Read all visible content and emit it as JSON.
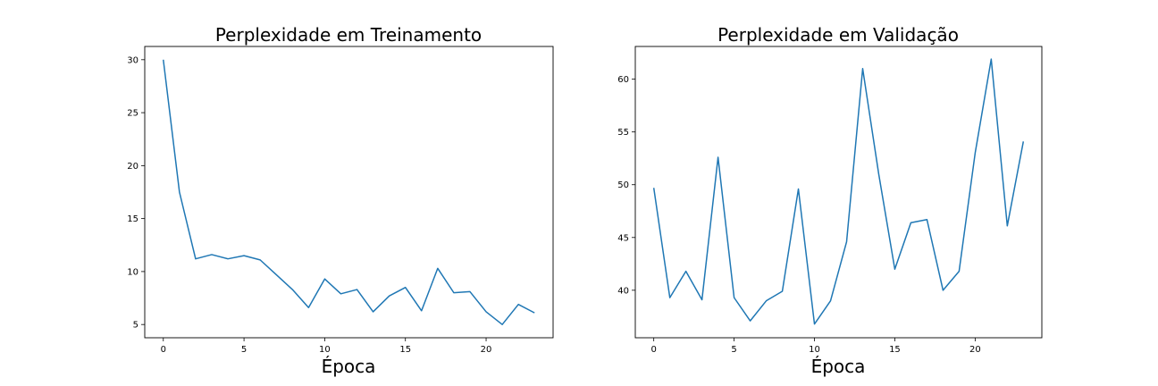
{
  "chart_data": [
    {
      "type": "line",
      "title": "Perplexidade em Treinamento",
      "xlabel": "Época",
      "ylabel": "",
      "xlim": [
        -1.15,
        24.15
      ],
      "ylim": [
        3.75,
        31.25
      ],
      "xticks": [
        0,
        5,
        10,
        15,
        20
      ],
      "yticks": [
        5,
        10,
        15,
        20,
        25,
        30
      ],
      "grid": false,
      "color": "#1f77b4",
      "series": [
        {
          "x": [
            0,
            1,
            2,
            3,
            4,
            5,
            6,
            7,
            8,
            9,
            10,
            11,
            12,
            13,
            14,
            15,
            16,
            17,
            18,
            19,
            20,
            21,
            22,
            23
          ],
          "values": [
            30.0,
            17.5,
            11.2,
            11.6,
            11.2,
            11.5,
            11.1,
            9.7,
            8.3,
            6.6,
            9.3,
            7.9,
            8.3,
            6.2,
            7.7,
            8.5,
            6.3,
            10.3,
            8.0,
            8.1,
            6.2,
            5.0,
            6.9,
            6.1
          ]
        }
      ]
    },
    {
      "type": "line",
      "title": "Perplexidade em Validação",
      "xlabel": "Época",
      "ylabel": "",
      "xlim": [
        -1.15,
        24.15
      ],
      "ylim": [
        35.5,
        63.1
      ],
      "xticks": [
        0,
        5,
        10,
        15,
        20
      ],
      "yticks": [
        40,
        45,
        50,
        55,
        60
      ],
      "grid": false,
      "color": "#1f77b4",
      "series": [
        {
          "x": [
            0,
            1,
            2,
            3,
            4,
            5,
            6,
            7,
            8,
            9,
            10,
            11,
            12,
            13,
            14,
            15,
            16,
            17,
            18,
            19,
            20,
            21,
            22,
            23
          ],
          "values": [
            49.7,
            39.3,
            41.8,
            39.1,
            52.6,
            39.3,
            37.1,
            39.0,
            39.9,
            49.6,
            36.8,
            39.0,
            44.6,
            61.0,
            51.0,
            42.0,
            46.4,
            46.7,
            40.0,
            41.8,
            53.0,
            61.9,
            46.1,
            54.1
          ]
        }
      ]
    }
  ]
}
